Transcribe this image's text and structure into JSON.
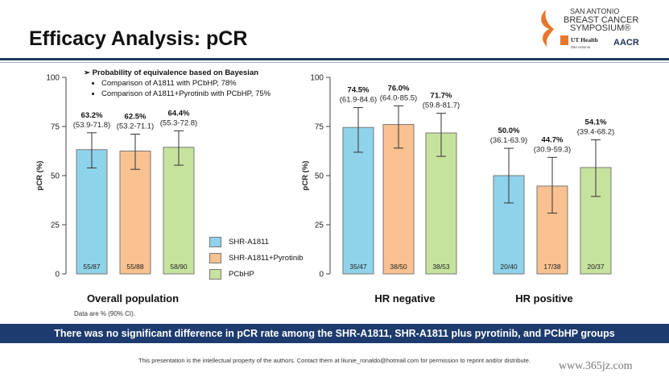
{
  "slide": {
    "title": "Efficacy Analysis: pCR",
    "bayes_heading": "Probability of equivalence based on Bayesian",
    "bayes_items": [
      "Comparison of A1811 with PCbHP, 78%",
      "Comparison of A1811+Pyrotinib with PCbHP, 75%"
    ],
    "note": "Data are % (90% CI).",
    "banner": "There was no significant difference in pCR rate among the SHR-A1811, SHR-A1811 plus pyrotinib, and PCbHP groups",
    "footer": "This presentation is the intellectual property of the authors. Contact them at liiunie_ronaldo@hotmail.com for permission to reprint and/or distribute.",
    "watermark": "www.365jz.com",
    "logo": {
      "line1": "SAN ANTONIO",
      "line2": "BREAST CANCER",
      "line3": "SYMPOSIUM®",
      "ut": "UT Health",
      "ut_sub": "San Antonio",
      "aacr": "AACR"
    }
  },
  "colors": {
    "SHR-A1811": "#8fd3ea",
    "SHR-A1811+Pyrotinib": "#f8c18f",
    "PCbHP": "#c6e39e",
    "banner": "#1d3b6e",
    "header_rule": "#1f3a5f"
  },
  "chart_data": [
    {
      "type": "bar",
      "title": "Overall population",
      "ylabel": "pCR (%)",
      "ylim": [
        0,
        100
      ],
      "yticks": [
        0,
        25,
        50,
        75,
        100
      ],
      "series": [
        {
          "name": "SHR-A1811",
          "value": 63.2,
          "ci": [
            53.9,
            71.8
          ],
          "value_label": "63.2%",
          "ci_label": "(53.9-71.8)",
          "n_label": "55/87"
        },
        {
          "name": "SHR-A1811+Pyrotinib",
          "value": 62.5,
          "ci": [
            53.2,
            71.1
          ],
          "value_label": "62.5%",
          "ci_label": "(53.2-71.1)",
          "n_label": "55/88"
        },
        {
          "name": "PCbHP",
          "value": 64.4,
          "ci": [
            55.3,
            72.8
          ],
          "value_label": "64.4%",
          "ci_label": "(55.3-72.8)",
          "n_label": "58/90"
        }
      ]
    },
    {
      "type": "bar",
      "title": "HR negative",
      "ylabel": "pCR (%)",
      "ylim": [
        0,
        100
      ],
      "yticks": [
        0,
        25,
        50,
        75,
        100
      ],
      "series": [
        {
          "name": "SHR-A1811",
          "value": 74.5,
          "ci": [
            61.9,
            84.6
          ],
          "value_label": "74.5%",
          "ci_label": "(61.9-84.6)",
          "n_label": "35/47"
        },
        {
          "name": "SHR-A1811+Pyrotinib",
          "value": 76.0,
          "ci": [
            64.0,
            85.5
          ],
          "value_label": "76.0%",
          "ci_label": "(64.0-85.5)",
          "n_label": "38/50"
        },
        {
          "name": "PCbHP",
          "value": 71.7,
          "ci": [
            59.8,
            81.7
          ],
          "value_label": "71.7%",
          "ci_label": "(59.8-81.7)",
          "n_label": "38/53"
        }
      ]
    },
    {
      "type": "bar",
      "title": "HR positive",
      "ylabel": "",
      "ylim": [
        0,
        100
      ],
      "yticks": [],
      "series": [
        {
          "name": "SHR-A1811",
          "value": 50.0,
          "ci": [
            36.1,
            63.9
          ],
          "value_label": "50.0%",
          "ci_label": "(36.1-63.9)",
          "n_label": "20/40"
        },
        {
          "name": "SHR-A1811+Pyrotinib",
          "value": 44.7,
          "ci": [
            30.9,
            59.3
          ],
          "value_label": "44.7%",
          "ci_label": "(30.9-59.3)",
          "n_label": "17/38"
        },
        {
          "name": "PCbHP",
          "value": 54.1,
          "ci": [
            39.4,
            68.2
          ],
          "value_label": "54.1%",
          "ci_label": "(39.4-68.2)",
          "n_label": "20/37"
        }
      ]
    }
  ],
  "legend": [
    {
      "label": "SHR-A1811",
      "color": "#8fd3ea"
    },
    {
      "label": "SHR-A1811+Pyrotinib",
      "color": "#f8c18f"
    },
    {
      "label": "PCbHP",
      "color": "#c6e39e"
    }
  ]
}
